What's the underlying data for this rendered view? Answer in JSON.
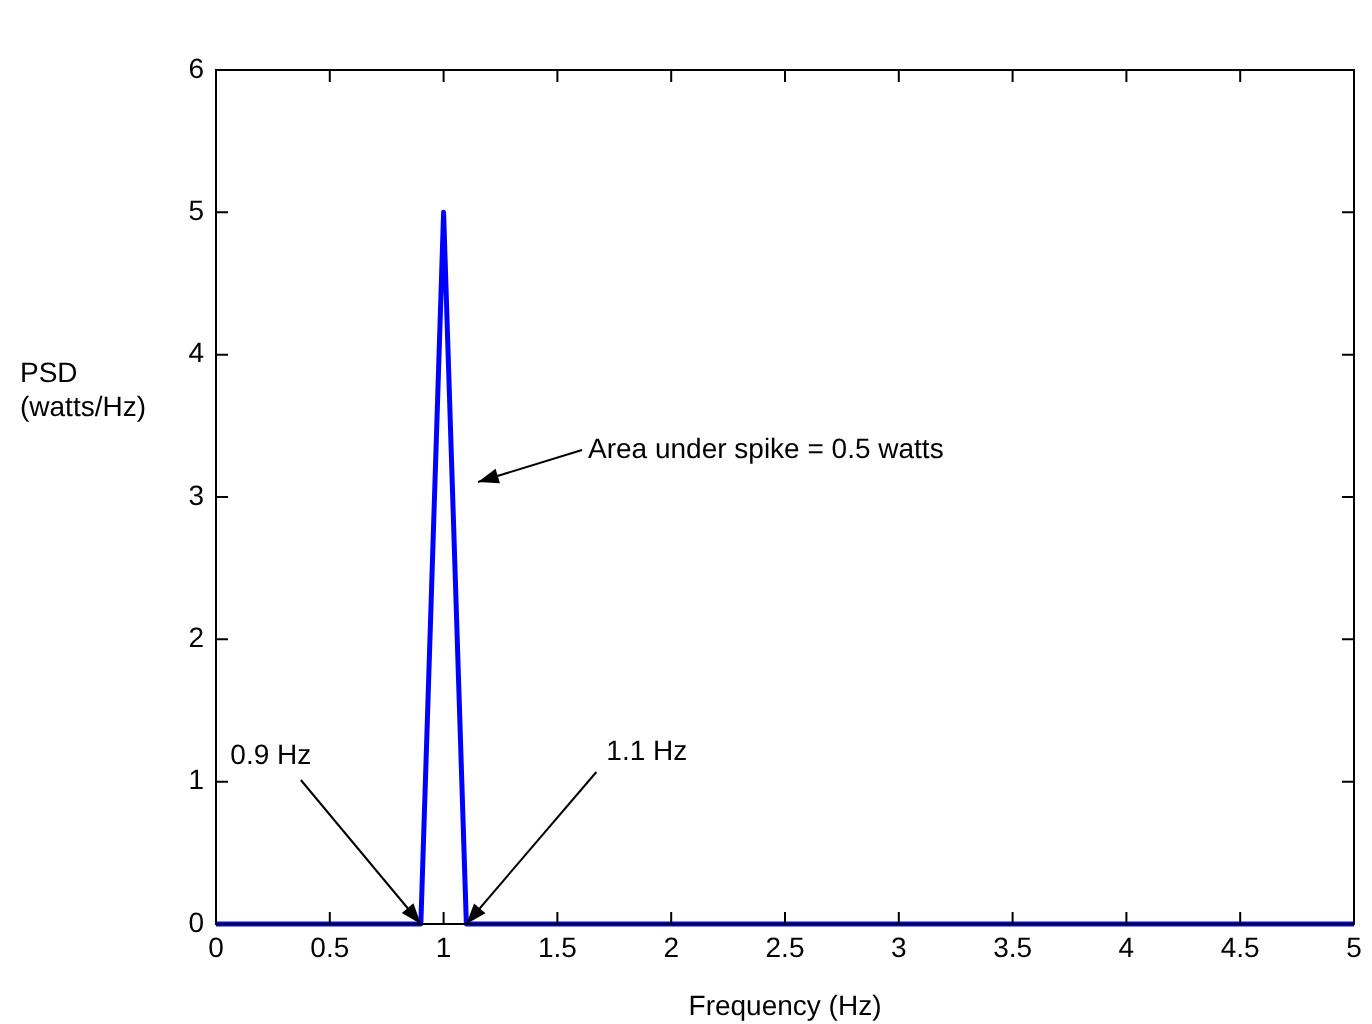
{
  "chart_data": {
    "type": "line",
    "xlabel": "Frequency (Hz)",
    "ylabel": "PSD (watts/Hz)",
    "x": [
      0,
      0.9,
      1,
      1.1,
      5
    ],
    "series": [
      {
        "color": "#0000ff",
        "values": [
          0,
          0,
          5,
          0,
          0
        ]
      }
    ],
    "xlim": [
      0,
      5
    ],
    "xticks": [
      0,
      0.5,
      1,
      1.5,
      2,
      2.5,
      3,
      3.5,
      4,
      4.5,
      5
    ],
    "ylim": [
      0,
      6
    ],
    "yticks": [
      0,
      1,
      2,
      3,
      4,
      5,
      6
    ],
    "grid": false,
    "legend": false,
    "marker": "none",
    "line_style": "solid",
    "annotations": [
      "Area under spike = 0.5 watts",
      {
        "text": "0.9 Hz",
        "x": 0.9,
        "y": 0
      },
      {
        "text": "1.1 Hz",
        "x": 1.1,
        "y": 0
      }
    ]
  }
}
